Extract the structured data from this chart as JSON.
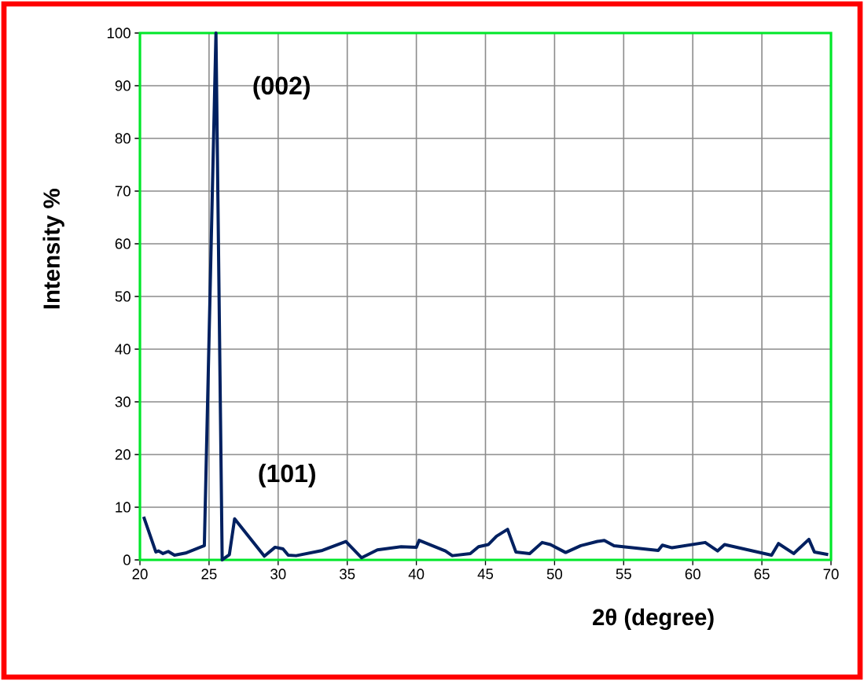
{
  "chart_data": {
    "type": "line",
    "xlabel": "2θ (degree)",
    "ylabel": "Intensity %",
    "x": [
      20.27,
      21.15,
      21.35,
      21.67,
      22.05,
      22.5,
      23.3,
      24.66,
      25.5,
      25.95,
      26.47,
      26.85,
      29.0,
      29.78,
      30.35,
      30.73,
      31.3,
      33.2,
      34.9,
      36.04,
      37.18,
      38.9,
      40.0,
      40.2,
      42.1,
      42.6,
      43.9,
      44.5,
      45.2,
      45.8,
      46.6,
      47.2,
      48.2,
      49.1,
      49.7,
      50.8,
      51.9,
      53.1,
      53.6,
      54.3,
      57.5,
      57.8,
      58.5,
      60.9,
      61.8,
      62.3,
      65.7,
      66.2,
      67.3,
      68.4,
      68.8,
      69.8
    ],
    "series": [
      {
        "color": "#002060",
        "values": [
          8.2,
          1.5,
          1.7,
          1.2,
          1.6,
          0.9,
          1.3,
          2.7,
          100,
          0,
          1.0,
          7.8,
          0.7,
          2.4,
          2.1,
          0.9,
          0.8,
          1.8,
          3.5,
          0.4,
          1.9,
          2.5,
          2.4,
          3.7,
          1.7,
          0.8,
          1.2,
          2.5,
          2.9,
          4.5,
          5.8,
          1.5,
          1.2,
          3.3,
          2.9,
          1.4,
          2.7,
          3.5,
          3.7,
          2.7,
          1.8,
          2.8,
          2.3,
          3.3,
          1.7,
          2.9,
          0.9,
          3.1,
          1.2,
          3.9,
          1.5,
          1.0
        ]
      }
    ],
    "xlim": [
      20,
      70
    ],
    "ylim": [
      0,
      100
    ],
    "xticks": [
      20,
      25,
      30,
      35,
      40,
      45,
      50,
      55,
      60,
      65,
      70
    ],
    "yticks": [
      0,
      10,
      20,
      30,
      40,
      50,
      60,
      70,
      80,
      90,
      100
    ],
    "grid": true,
    "annotations": [
      "(002)",
      "(101)"
    ]
  }
}
